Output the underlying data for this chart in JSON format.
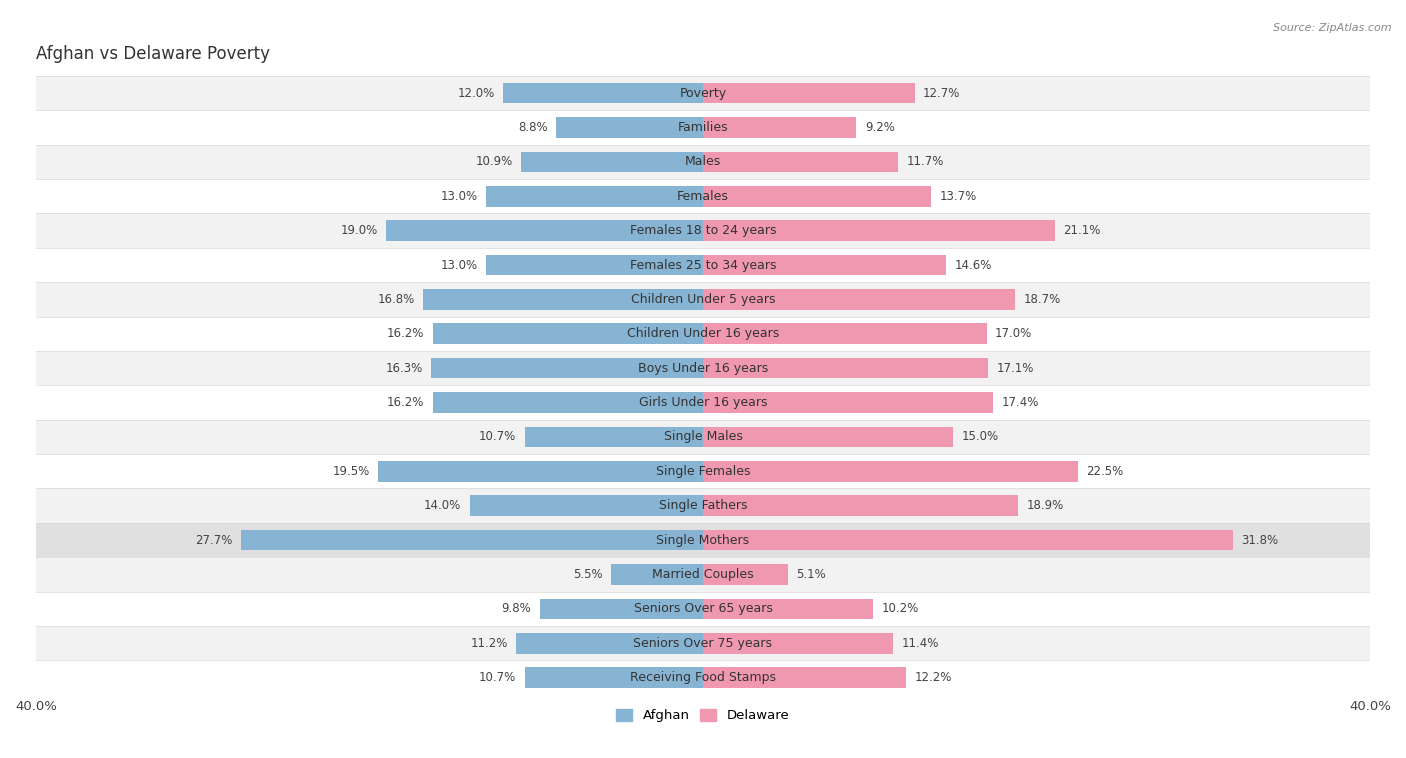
{
  "title": "Afghan vs Delaware Poverty",
  "source": "Source: ZipAtlas.com",
  "categories": [
    "Poverty",
    "Families",
    "Males",
    "Females",
    "Females 18 to 24 years",
    "Females 25 to 34 years",
    "Children Under 5 years",
    "Children Under 16 years",
    "Boys Under 16 years",
    "Girls Under 16 years",
    "Single Males",
    "Single Females",
    "Single Fathers",
    "Single Mothers",
    "Married Couples",
    "Seniors Over 65 years",
    "Seniors Over 75 years",
    "Receiving Food Stamps"
  ],
  "afghan_values": [
    12.0,
    8.8,
    10.9,
    13.0,
    19.0,
    13.0,
    16.8,
    16.2,
    16.3,
    16.2,
    10.7,
    19.5,
    14.0,
    27.7,
    5.5,
    9.8,
    11.2,
    10.7
  ],
  "delaware_values": [
    12.7,
    9.2,
    11.7,
    13.7,
    21.1,
    14.6,
    18.7,
    17.0,
    17.1,
    17.4,
    15.0,
    22.5,
    18.9,
    31.8,
    5.1,
    10.2,
    11.4,
    12.2
  ],
  "afghan_color": "#88b4d4",
  "delaware_color": "#f098b0",
  "row_bg_odd": "#f2f2f2",
  "row_bg_even": "#ffffff",
  "row_separator": "#d8d8d8",
  "xlim": 40.0,
  "bar_height": 0.6,
  "label_fontsize": 9.0,
  "title_fontsize": 12,
  "value_fontsize": 8.5,
  "single_mothers_highlight": "#e0e0e0"
}
